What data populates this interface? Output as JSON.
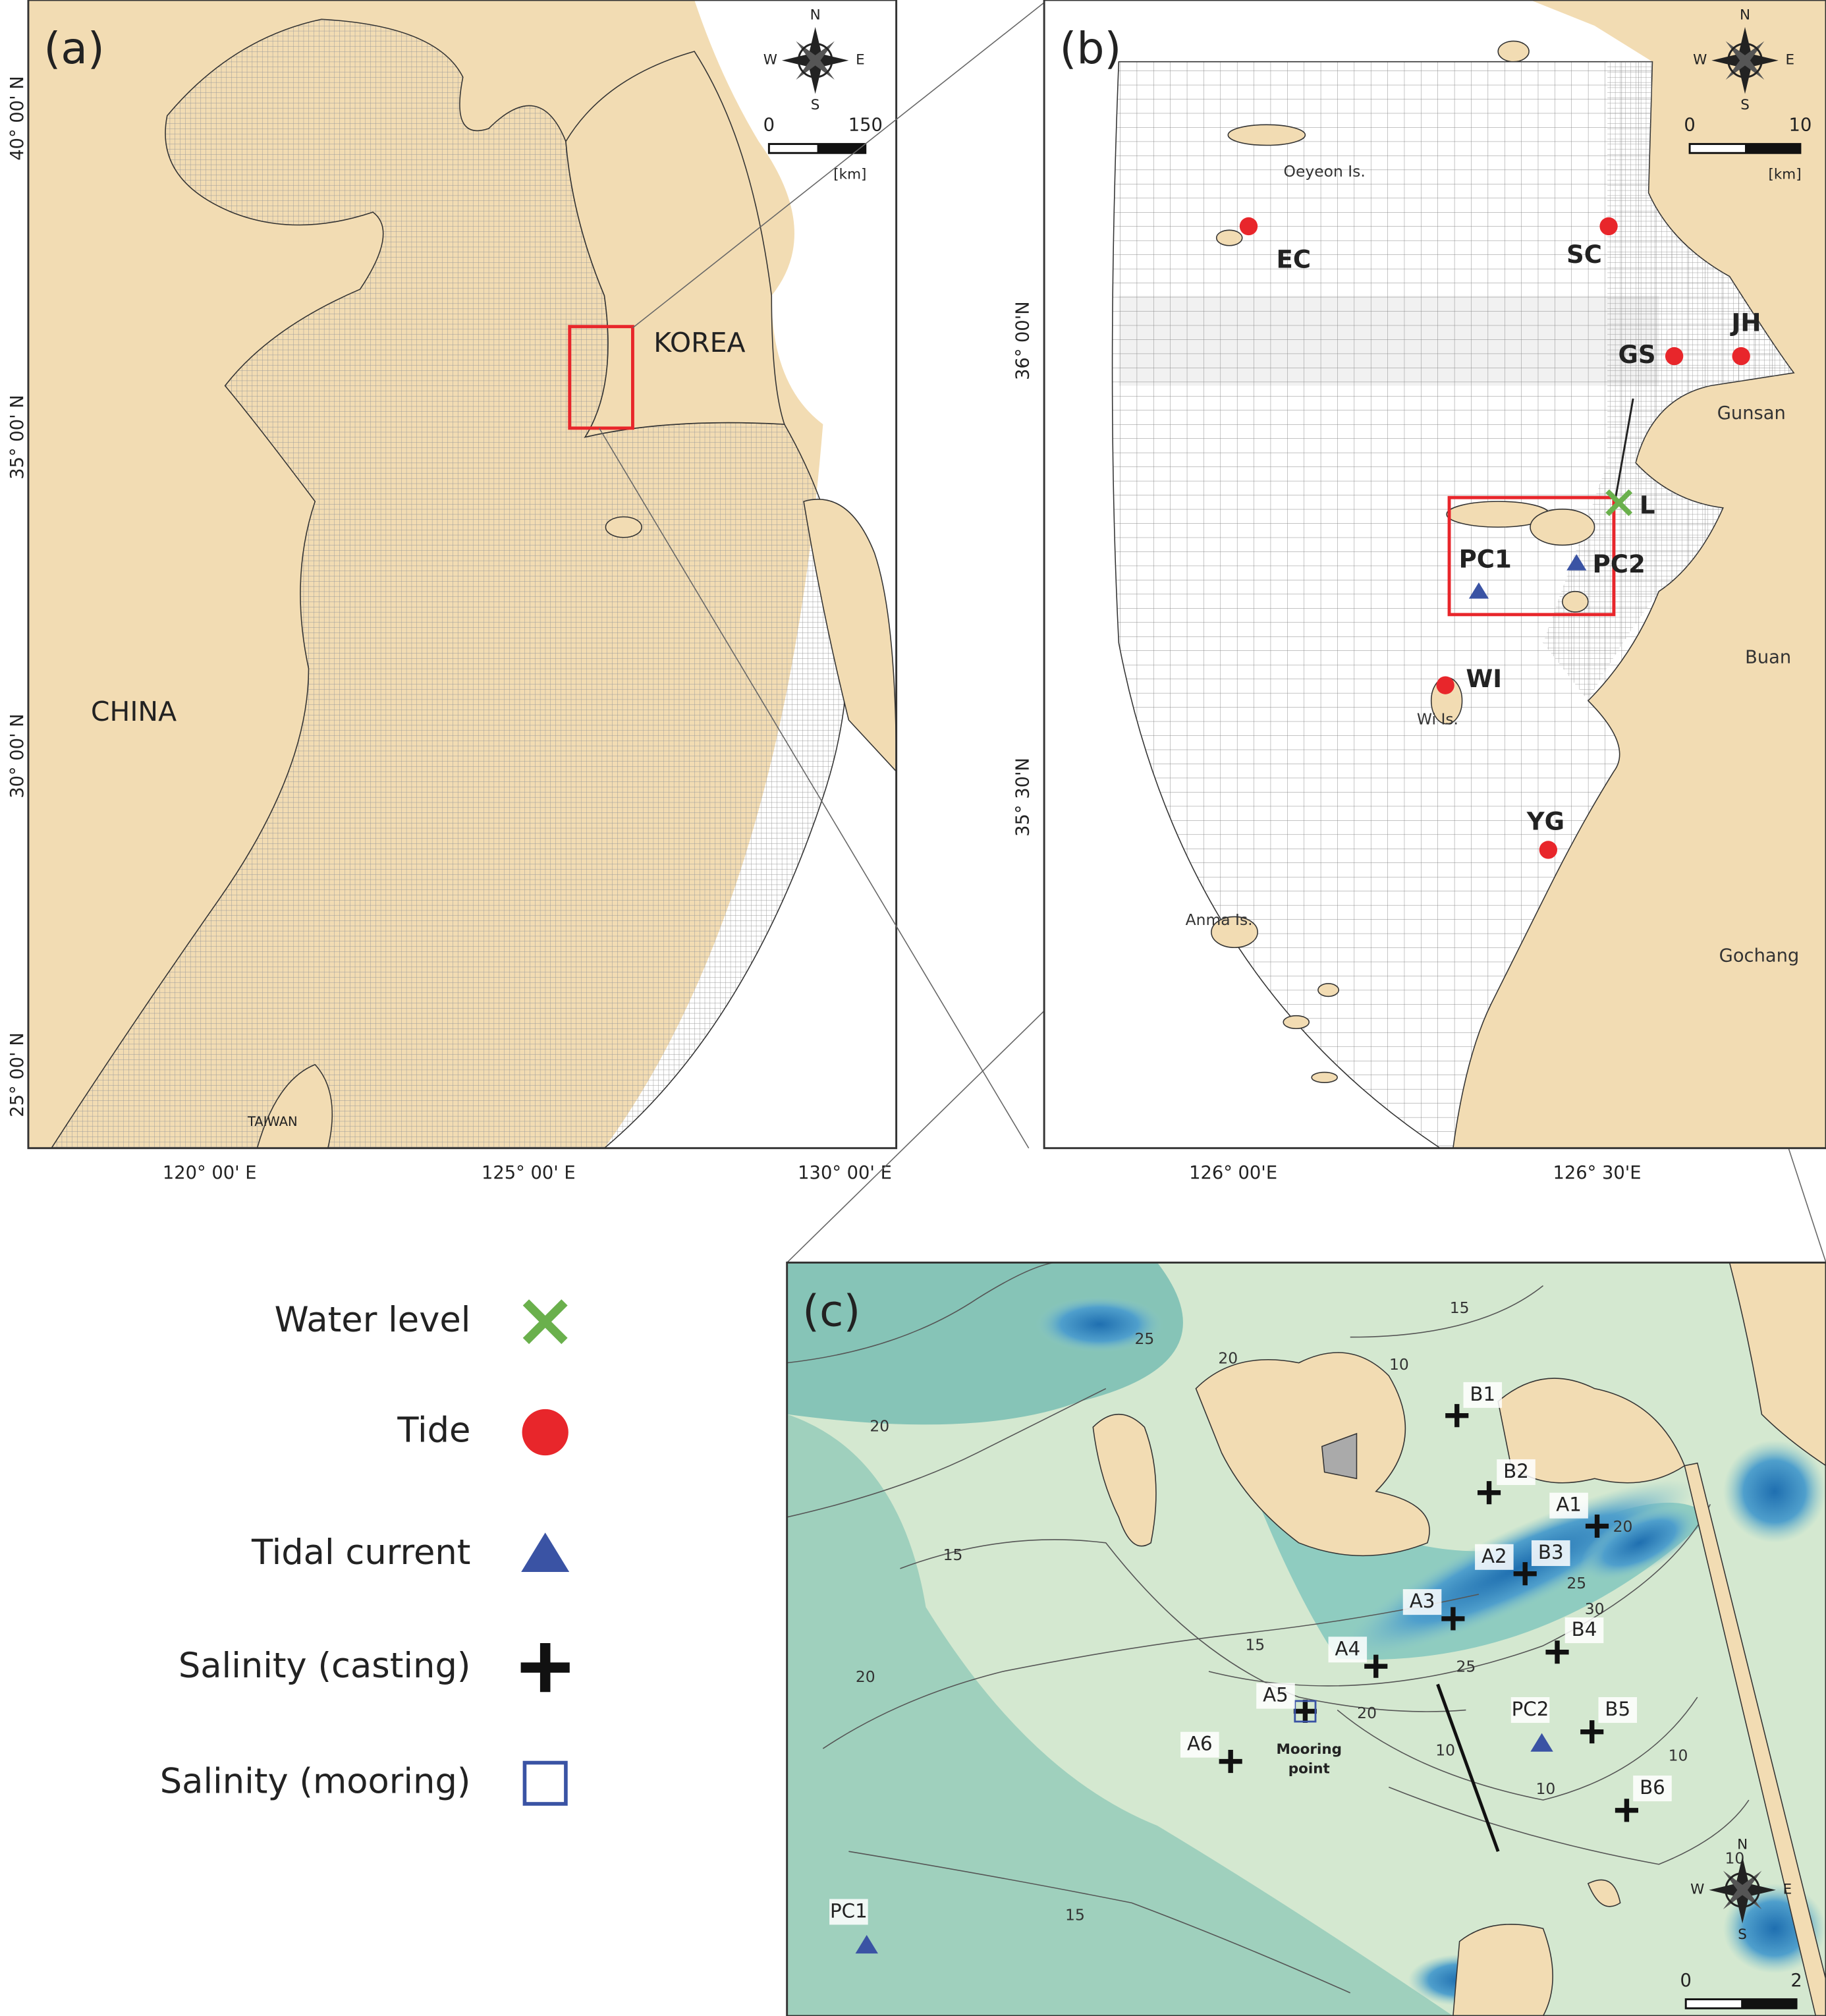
{
  "panel_a": {
    "label": "(a)",
    "places": [
      "KOREA",
      "CHINA",
      "TAIWAN"
    ],
    "lat_ticks": [
      "40° 00' N",
      "35° 00' N",
      "30° 00' N",
      "25° 00' N"
    ],
    "lon_ticks": [
      "120° 00' E",
      "125° 00' E",
      "130° 00' E"
    ],
    "compass": [
      "N",
      "S",
      "W",
      "E"
    ],
    "scale_bar": {
      "labels": [
        "0",
        "150"
      ],
      "unit": "[km]"
    }
  },
  "panel_b": {
    "label": "(b)",
    "stations": [
      "EC",
      "SC",
      "GS",
      "JH",
      "L",
      "PC1",
      "PC2",
      "WI",
      "YG"
    ],
    "places": [
      "Oeyeon Is.",
      "Gunsan",
      "Buan",
      "Wi Is.",
      "Anma Is.",
      "Gochang"
    ],
    "lat_ticks": [
      "36° 00'N",
      "35° 30'N"
    ],
    "lon_ticks": [
      "126° 00'E",
      "126° 30'E"
    ],
    "compass": [
      "N",
      "S",
      "W",
      "E"
    ],
    "scale_bar": {
      "labels": [
        "0",
        "10"
      ],
      "unit": "[km]"
    }
  },
  "panel_c": {
    "label": "(c)",
    "stations": [
      "B1",
      "B2",
      "A1",
      "A2",
      "B3",
      "A3",
      "B4",
      "A4",
      "A5",
      "B5",
      "A6",
      "B6",
      "PC2",
      "PC1"
    ],
    "mooring_label": [
      "Mooring",
      "point"
    ],
    "contour_labels": [
      15,
      25,
      20,
      10,
      20,
      15,
      20,
      15,
      25,
      20,
      10,
      10,
      15,
      10,
      20,
      25,
      30,
      10
    ],
    "compass": [
      "N",
      "S",
      "W",
      "E"
    ],
    "scale_bar": {
      "labels": [
        "0",
        "2"
      ],
      "unit": "[km]"
    }
  },
  "legend": [
    "Water level",
    "Tide",
    "Tidal current",
    "Salinity (casting)",
    "Salinity (mooring)"
  ]
}
